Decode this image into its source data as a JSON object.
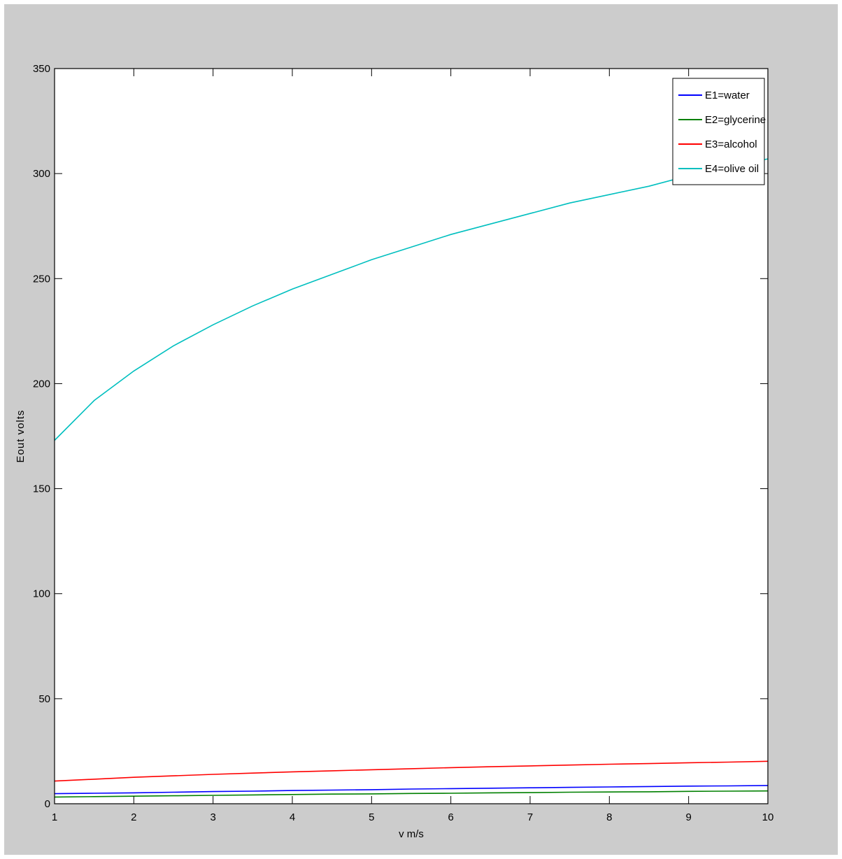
{
  "chart_data": {
    "type": "line",
    "title": "",
    "xlabel": "v m/s",
    "ylabel": "Eout  volts",
    "xlim": [
      1,
      10
    ],
    "ylim": [
      0,
      350
    ],
    "xticks": [
      "1",
      "2",
      "3",
      "4",
      "5",
      "6",
      "7",
      "8",
      "9",
      "10"
    ],
    "yticks": [
      "0",
      "50",
      "100",
      "150",
      "200",
      "250",
      "300",
      "350"
    ],
    "grid": false,
    "legend_position": "top-right",
    "x": [
      1,
      1.5,
      2,
      2.5,
      3,
      3.5,
      4,
      4.5,
      5,
      5.5,
      6,
      6.5,
      7,
      7.5,
      8,
      8.5,
      9,
      9.5,
      10
    ],
    "series": [
      {
        "name": "E1=water",
        "color": "#0000ff",
        "values": [
          4.8,
          5.0,
          5.2,
          5.5,
          5.8,
          6.0,
          6.3,
          6.5,
          6.7,
          7.0,
          7.2,
          7.4,
          7.6,
          7.8,
          8.0,
          8.2,
          8.4,
          8.5,
          8.7
        ]
      },
      {
        "name": "E2=glycerine",
        "color": "#008000",
        "values": [
          3.2,
          3.4,
          3.6,
          3.8,
          4.0,
          4.2,
          4.4,
          4.6,
          4.7,
          4.9,
          5.0,
          5.2,
          5.3,
          5.5,
          5.6,
          5.7,
          5.9,
          6.0,
          6.1
        ]
      },
      {
        "name": "E3=alcohol",
        "color": "#ff0000",
        "values": [
          10.8,
          11.7,
          12.6,
          13.3,
          14.0,
          14.6,
          15.2,
          15.7,
          16.2,
          16.7,
          17.2,
          17.6,
          18.0,
          18.4,
          18.8,
          19.1,
          19.5,
          19.8,
          20.2
        ]
      },
      {
        "name": "E4=olive oil",
        "color": "#00bfbf",
        "values": [
          173,
          192,
          206,
          218,
          228,
          237,
          245,
          252,
          259,
          265,
          271,
          276,
          281,
          286,
          290,
          294,
          299,
          303,
          307
        ]
      }
    ]
  }
}
